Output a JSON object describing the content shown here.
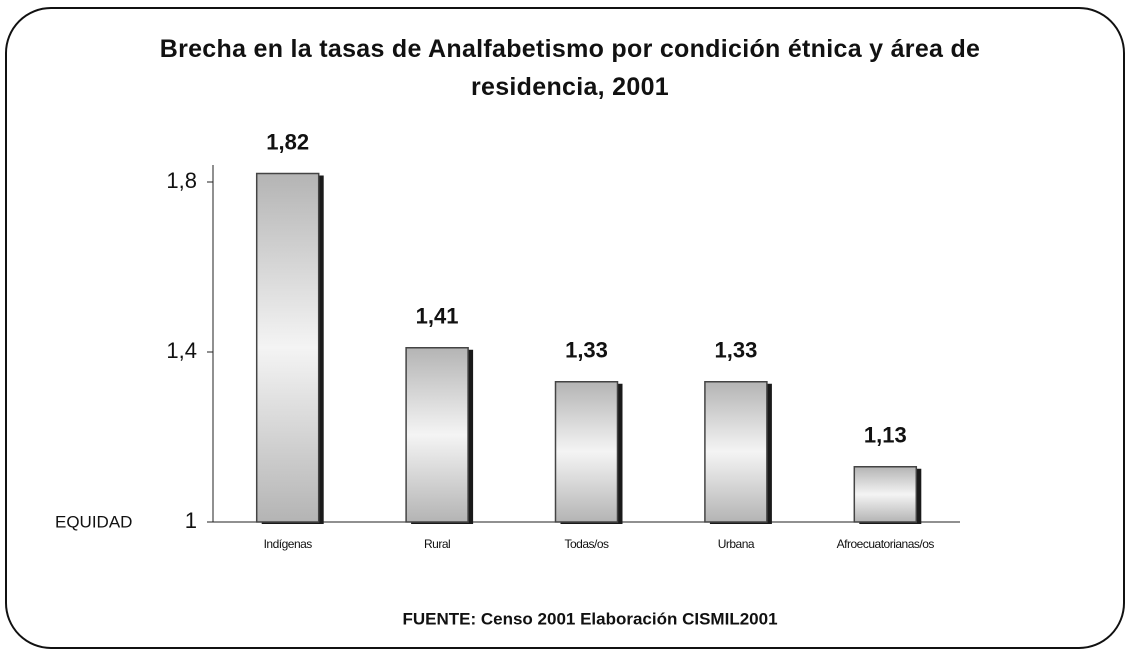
{
  "chart_data": {
    "type": "bar",
    "title": "Brecha en la tasas de Analfabetismo por condición étnica y área de residencia, 2001",
    "categories": [
      "Indígenas",
      "Rural",
      "Todas/os",
      "Urbana",
      "Afroecuatorianas/os"
    ],
    "values": [
      1.82,
      1.41,
      1.33,
      1.33,
      1.13
    ],
    "value_labels": [
      "1,82",
      "1,41",
      "1,33",
      "1,33",
      "1,13"
    ],
    "color": "#b4b4b4",
    "ylim": [
      1,
      1.84
    ],
    "yticks": [
      {
        "value": 1,
        "label": "1"
      },
      {
        "value": 1.4,
        "label": "1,4"
      },
      {
        "value": 1.8,
        "label": "1,8"
      }
    ],
    "annotation": "EQUIDAD",
    "source": "FUENTE: Censo 2001 Elaboración CISMIL2001"
  }
}
